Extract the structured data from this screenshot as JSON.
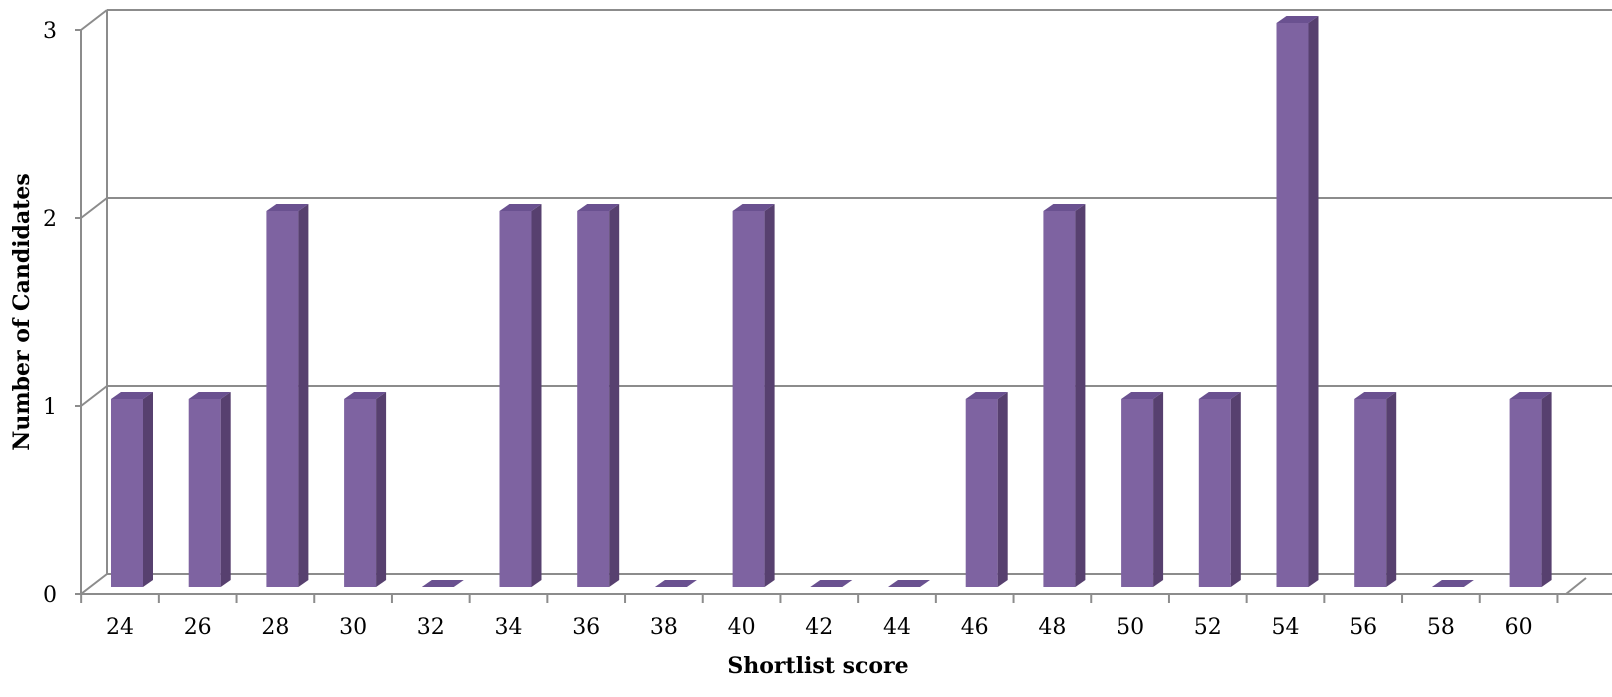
{
  "chart_data": {
    "type": "bar",
    "categories": [
      "24",
      "26",
      "28",
      "30",
      "32",
      "34",
      "36",
      "38",
      "40",
      "42",
      "44",
      "46",
      "48",
      "50",
      "52",
      "54",
      "56",
      "58",
      "60"
    ],
    "values": [
      1,
      1,
      2,
      1,
      0,
      2,
      2,
      0,
      2,
      0,
      0,
      1,
      2,
      1,
      1,
      3,
      1,
      0,
      1
    ],
    "title": "",
    "xlabel": "Shortlist score",
    "ylabel": "Number of Candidates",
    "ylim": [
      0,
      3
    ],
    "yticks": [
      "0",
      "1",
      "2",
      "3"
    ],
    "grid": true,
    "legend": "none",
    "colors": {
      "bar_front": "#7e63a1",
      "bar_side": "#57406f",
      "bar_top": "#6a5190",
      "grid": "#8c8c8c"
    }
  }
}
